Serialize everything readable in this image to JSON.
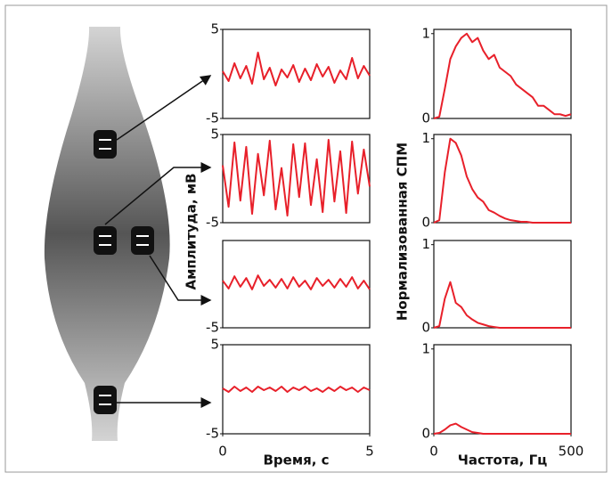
{
  "chart_data": [
    {
      "type": "line",
      "color": "#e8202a",
      "xlim": [
        0,
        5
      ],
      "ylim": [
        -5,
        5
      ],
      "yticks": [
        5,
        -5
      ],
      "x": [
        0,
        0.2,
        0.4,
        0.6,
        0.8,
        1,
        1.2,
        1.4,
        1.6,
        1.8,
        2,
        2.2,
        2.4,
        2.6,
        2.8,
        3,
        3.2,
        3.4,
        3.6,
        3.8,
        4,
        4.2,
        4.4,
        4.6,
        4.8,
        5
      ],
      "values": [
        0.3,
        -0.8,
        1.2,
        -0.5,
        0.9,
        -1.1,
        2.4,
        -0.6,
        0.7,
        -1.3,
        0.5,
        -0.4,
        1.0,
        -0.9,
        0.6,
        -0.7,
        1.1,
        -0.3,
        0.8,
        -1.0,
        0.4,
        -0.6,
        1.8,
        -0.5,
        0.9,
        -0.2
      ]
    },
    {
      "type": "line",
      "color": "#e8202a",
      "xlim": [
        0,
        5
      ],
      "ylim": [
        -5,
        5
      ],
      "yticks": [
        5,
        -5
      ],
      "ylabel": "Амплитуда, мВ",
      "x": [
        0,
        0.2,
        0.4,
        0.6,
        0.8,
        1,
        1.2,
        1.4,
        1.6,
        1.8,
        2,
        2.2,
        2.4,
        2.6,
        2.8,
        3,
        3.2,
        3.4,
        3.6,
        3.8,
        4,
        4.2,
        4.4,
        4.6,
        4.8,
        5
      ],
      "values": [
        1.5,
        -3.2,
        4.1,
        -2.5,
        3.6,
        -4.0,
        2.8,
        -1.9,
        4.3,
        -3.5,
        1.2,
        -4.2,
        3.9,
        -2.1,
        4.0,
        -3.0,
        2.2,
        -3.8,
        4.4,
        -2.6,
        3.1,
        -3.9,
        4.2,
        -1.7,
        3.3,
        -0.9
      ]
    },
    {
      "type": "line",
      "color": "#e8202a",
      "xlim": [
        0,
        5
      ],
      "ylim": [
        -5,
        5
      ],
      "yticks": [
        -5
      ],
      "x": [
        0,
        0.2,
        0.4,
        0.6,
        0.8,
        1,
        1.2,
        1.4,
        1.6,
        1.8,
        2,
        2.2,
        2.4,
        2.6,
        2.8,
        3,
        3.2,
        3.4,
        3.6,
        3.8,
        4,
        4.2,
        4.4,
        4.6,
        4.8,
        5
      ],
      "values": [
        0.4,
        -0.5,
        0.9,
        -0.3,
        0.7,
        -0.6,
        1.0,
        -0.2,
        0.5,
        -0.4,
        0.6,
        -0.5,
        0.8,
        -0.3,
        0.4,
        -0.6,
        0.7,
        -0.2,
        0.5,
        -0.4,
        0.6,
        -0.3,
        0.8,
        -0.5,
        0.4,
        -0.6
      ]
    },
    {
      "type": "line",
      "color": "#e8202a",
      "xlim": [
        0,
        5
      ],
      "ylim": [
        -5,
        5
      ],
      "yticks": [
        5,
        -5
      ],
      "xticks": [
        0,
        5
      ],
      "xlabel": "Время, с",
      "x": [
        0,
        0.2,
        0.4,
        0.6,
        0.8,
        1,
        1.2,
        1.4,
        1.6,
        1.8,
        2,
        2.2,
        2.4,
        2.6,
        2.8,
        3,
        3.2,
        3.4,
        3.6,
        3.8,
        4,
        4.2,
        4.4,
        4.6,
        4.8,
        5
      ],
      "values": [
        0.1,
        -0.3,
        0.3,
        -0.2,
        0.2,
        -0.3,
        0.3,
        -0.1,
        0.2,
        -0.2,
        0.3,
        -0.3,
        0.2,
        -0.1,
        0.3,
        -0.2,
        0.1,
        -0.3,
        0.2,
        -0.2,
        0.3,
        -0.1,
        0.2,
        -0.3,
        0.2,
        -0.1
      ]
    },
    {
      "type": "line",
      "color": "#e8202a",
      "xlim": [
        0,
        500
      ],
      "ylim": [
        0,
        1.05
      ],
      "yticks": [
        1,
        0
      ],
      "x": [
        0,
        20,
        40,
        60,
        80,
        100,
        120,
        140,
        160,
        180,
        200,
        220,
        240,
        260,
        280,
        300,
        320,
        340,
        360,
        380,
        400,
        420,
        440,
        460,
        480,
        500
      ],
      "values": [
        0,
        0.02,
        0.35,
        0.7,
        0.85,
        0.95,
        1.0,
        0.9,
        0.95,
        0.8,
        0.7,
        0.75,
        0.6,
        0.55,
        0.5,
        0.4,
        0.35,
        0.3,
        0.25,
        0.15,
        0.15,
        0.1,
        0.05,
        0.05,
        0.03,
        0.05
      ]
    },
    {
      "type": "line",
      "color": "#e8202a",
      "xlim": [
        0,
        500
      ],
      "ylim": [
        0,
        1.05
      ],
      "yticks": [
        1,
        0
      ],
      "ylabel": "Нормализованная СПМ",
      "x": [
        0,
        20,
        40,
        60,
        80,
        100,
        120,
        140,
        160,
        180,
        200,
        220,
        240,
        260,
        280,
        300,
        320,
        340,
        360,
        380,
        400,
        420,
        440,
        460,
        480,
        500
      ],
      "values": [
        0,
        0.03,
        0.6,
        1.0,
        0.95,
        0.8,
        0.55,
        0.4,
        0.3,
        0.25,
        0.15,
        0.12,
        0.08,
        0.05,
        0.03,
        0.02,
        0.01,
        0.01,
        0,
        0,
        0,
        0,
        0,
        0,
        0,
        0
      ]
    },
    {
      "type": "line",
      "color": "#e8202a",
      "xlim": [
        0,
        500
      ],
      "ylim": [
        0,
        1.05
      ],
      "yticks": [
        1,
        0
      ],
      "x": [
        0,
        20,
        40,
        60,
        80,
        100,
        120,
        140,
        160,
        180,
        200,
        220,
        240,
        260,
        280,
        300,
        320,
        340,
        360,
        380,
        400,
        420,
        440,
        460,
        480,
        500
      ],
      "values": [
        0,
        0.02,
        0.35,
        0.55,
        0.3,
        0.25,
        0.15,
        0.1,
        0.06,
        0.04,
        0.02,
        0.01,
        0,
        0,
        0,
        0,
        0,
        0,
        0,
        0,
        0,
        0,
        0,
        0,
        0,
        0
      ]
    },
    {
      "type": "line",
      "color": "#e8202a",
      "xlim": [
        0,
        500
      ],
      "ylim": [
        0,
        1.05
      ],
      "yticks": [
        1,
        0
      ],
      "xticks": [
        0,
        500
      ],
      "xlabel": "Частота, Гц",
      "x": [
        0,
        20,
        40,
        60,
        80,
        100,
        120,
        140,
        160,
        180,
        200,
        220,
        240,
        260,
        280,
        300,
        320,
        340,
        360,
        380,
        400,
        420,
        440,
        460,
        480,
        500
      ],
      "values": [
        0,
        0.01,
        0.05,
        0.1,
        0.12,
        0.08,
        0.05,
        0.02,
        0.01,
        0,
        0,
        0,
        0,
        0,
        0,
        0,
        0,
        0,
        0,
        0,
        0,
        0,
        0,
        0,
        0,
        0
      ]
    }
  ]
}
